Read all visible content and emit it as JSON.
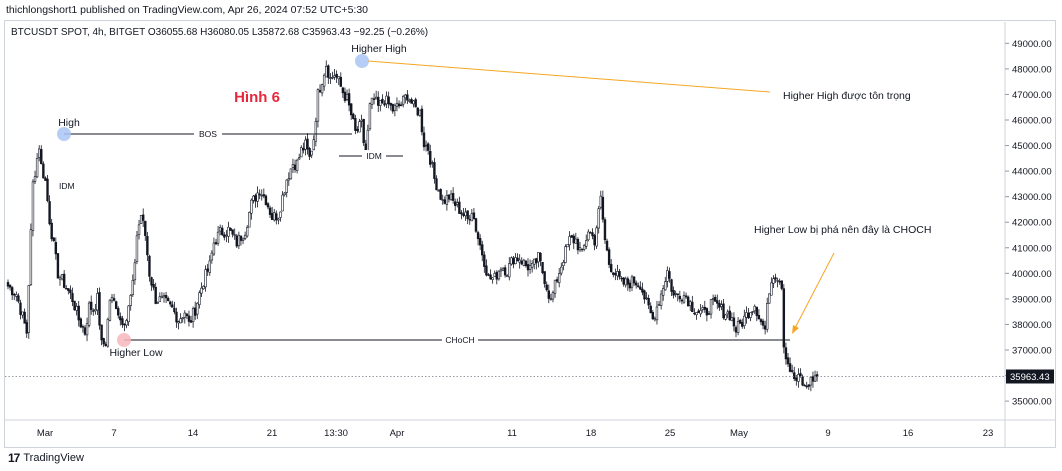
{
  "header": {
    "published": "thichlongshort1 published on TradingView.com, Apr 26, 2024 07:52 UTC+5:30"
  },
  "symbol_line": "BTCUSDT SPOT, 4h, BITGET  O36055.68  H36080.05  L35872.68  C35963.43  −92.25 (−0.26%)",
  "footer": {
    "logo": "17",
    "brand": "TradingView"
  },
  "colors": {
    "candle": "#131722",
    "annotation": "#f5a623",
    "title": "#e5283c",
    "high_dot": "#a9c4f5",
    "low_dot": "#f7b6bb",
    "last_price_bg": "#131722"
  },
  "chart_data": {
    "type": "candlestick",
    "title": "Hình 6",
    "ylim": [
      34300,
      49600
    ],
    "y_ticks": [
      "49000.00",
      "48000.00",
      "47000.00",
      "46000.00",
      "45000.00",
      "44000.00",
      "43000.00",
      "42000.00",
      "41000.00",
      "40000.00",
      "39000.00",
      "38000.00",
      "37000.00",
      "36000.00",
      "35000.00"
    ],
    "x_ticks": [
      "Mar",
      "7",
      "14",
      "21",
      "13:30",
      "Apr",
      "11",
      "18",
      "25",
      "May",
      "9",
      "16",
      "23"
    ],
    "last_price": "35963.43",
    "price_path": [
      [
        0,
        39500
      ],
      [
        4,
        39200
      ],
      [
        7,
        38300
      ],
      [
        9,
        37700
      ],
      [
        12,
        43500
      ],
      [
        15,
        45000
      ],
      [
        16,
        44200
      ],
      [
        18,
        43600
      ],
      [
        20,
        42100
      ],
      [
        24,
        40000
      ],
      [
        27,
        39600
      ],
      [
        31,
        39000
      ],
      [
        34,
        38200
      ],
      [
        37,
        37700
      ],
      [
        39,
        38700
      ],
      [
        41,
        38600
      ],
      [
        43,
        39000
      ],
      [
        45,
        37200
      ],
      [
        47,
        37300
      ],
      [
        49,
        39000
      ],
      [
        52,
        38800
      ],
      [
        54,
        38200
      ],
      [
        57,
        38200
      ],
      [
        60,
        39500
      ],
      [
        62,
        41500
      ],
      [
        64,
        42300
      ],
      [
        66,
        41500
      ],
      [
        68,
        40000
      ],
      [
        71,
        39000
      ],
      [
        75,
        38900
      ],
      [
        79,
        38600
      ],
      [
        82,
        38200
      ],
      [
        85,
        38500
      ],
      [
        87,
        38000
      ],
      [
        90,
        38600
      ],
      [
        92,
        39200
      ],
      [
        94,
        39700
      ],
      [
        97,
        40300
      ],
      [
        99,
        41200
      ],
      [
        102,
        41600
      ],
      [
        106,
        41700
      ],
      [
        110,
        41200
      ],
      [
        114,
        41700
      ],
      [
        117,
        42700
      ],
      [
        121,
        43300
      ],
      [
        124,
        42900
      ],
      [
        127,
        42200
      ],
      [
        130,
        42300
      ],
      [
        134,
        43700
      ],
      [
        137,
        44300
      ],
      [
        139,
        44300
      ],
      [
        141,
        44800
      ],
      [
        143,
        45000
      ],
      [
        145,
        44500
      ],
      [
        147,
        45300
      ],
      [
        149,
        47000
      ],
      [
        151,
        47600
      ],
      [
        153,
        48200
      ],
      [
        155,
        47600
      ],
      [
        157,
        47800
      ],
      [
        159,
        47500
      ],
      [
        161,
        47100
      ],
      [
        163,
        46800
      ],
      [
        165,
        46200
      ],
      [
        167,
        45500
      ],
      [
        170,
        45800
      ],
      [
        172,
        44500
      ],
      [
        174,
        46500
      ],
      [
        176,
        46800
      ],
      [
        178,
        46500
      ],
      [
        181,
        46800
      ],
      [
        185,
        46400
      ],
      [
        189,
        46600
      ],
      [
        192,
        47000
      ],
      [
        195,
        46500
      ],
      [
        198,
        46300
      ],
      [
        200,
        45100
      ],
      [
        202,
        44900
      ],
      [
        205,
        43700
      ],
      [
        207,
        43300
      ],
      [
        209,
        42800
      ],
      [
        212,
        43000
      ],
      [
        215,
        42700
      ],
      [
        218,
        42400
      ],
      [
        221,
        42100
      ],
      [
        223,
        42500
      ],
      [
        226,
        41400
      ],
      [
        229,
        40500
      ],
      [
        231,
        39800
      ],
      [
        234,
        39800
      ],
      [
        237,
        40300
      ],
      [
        240,
        40100
      ],
      [
        243,
        40600
      ],
      [
        246,
        40600
      ],
      [
        249,
        40300
      ],
      [
        252,
        40200
      ],
      [
        255,
        40600
      ],
      [
        258,
        39800
      ],
      [
        261,
        38900
      ],
      [
        264,
        39800
      ],
      [
        267,
        40600
      ],
      [
        270,
        41300
      ],
      [
        273,
        41300
      ],
      [
        276,
        40700
      ],
      [
        279,
        41700
      ],
      [
        282,
        41300
      ],
      [
        285,
        42900
      ],
      [
        287,
        41300
      ],
      [
        289,
        40400
      ],
      [
        292,
        40000
      ],
      [
        295,
        39600
      ],
      [
        298,
        39600
      ],
      [
        301,
        39700
      ],
      [
        304,
        39600
      ],
      [
        307,
        38800
      ],
      [
        310,
        38200
      ],
      [
        312,
        38700
      ],
      [
        314,
        39200
      ],
      [
        317,
        40100
      ],
      [
        320,
        39100
      ],
      [
        323,
        39200
      ],
      [
        326,
        39100
      ],
      [
        329,
        38700
      ],
      [
        332,
        38500
      ],
      [
        335,
        38400
      ],
      [
        338,
        38800
      ],
      [
        341,
        38700
      ],
      [
        344,
        38500
      ],
      [
        347,
        38400
      ],
      [
        350,
        37800
      ],
      [
        353,
        38100
      ],
      [
        356,
        38500
      ],
      [
        359,
        38800
      ],
      [
        362,
        38100
      ],
      [
        364,
        37800
      ],
      [
        366,
        39400
      ],
      [
        368,
        40000
      ],
      [
        370,
        39900
      ],
      [
        372,
        39600
      ],
      [
        373,
        37200
      ],
      [
        375,
        36500
      ],
      [
        377,
        36000
      ],
      [
        379,
        35800
      ],
      [
        381,
        35900
      ],
      [
        383,
        35500
      ],
      [
        385,
        35700
      ],
      [
        387,
        35900
      ],
      [
        389,
        35963.43
      ]
    ],
    "annotations": {
      "high": "High",
      "higher_high": "Higher High",
      "higher_low": "Higher Low",
      "bos": "BOS",
      "idm_1": "IDM",
      "idm_2": "IDM",
      "choch": "CHoCH",
      "note_hh": "Higher High được tôn trọng",
      "note_choch": "Higher Low bị phá nên đây là CHOCH"
    }
  }
}
